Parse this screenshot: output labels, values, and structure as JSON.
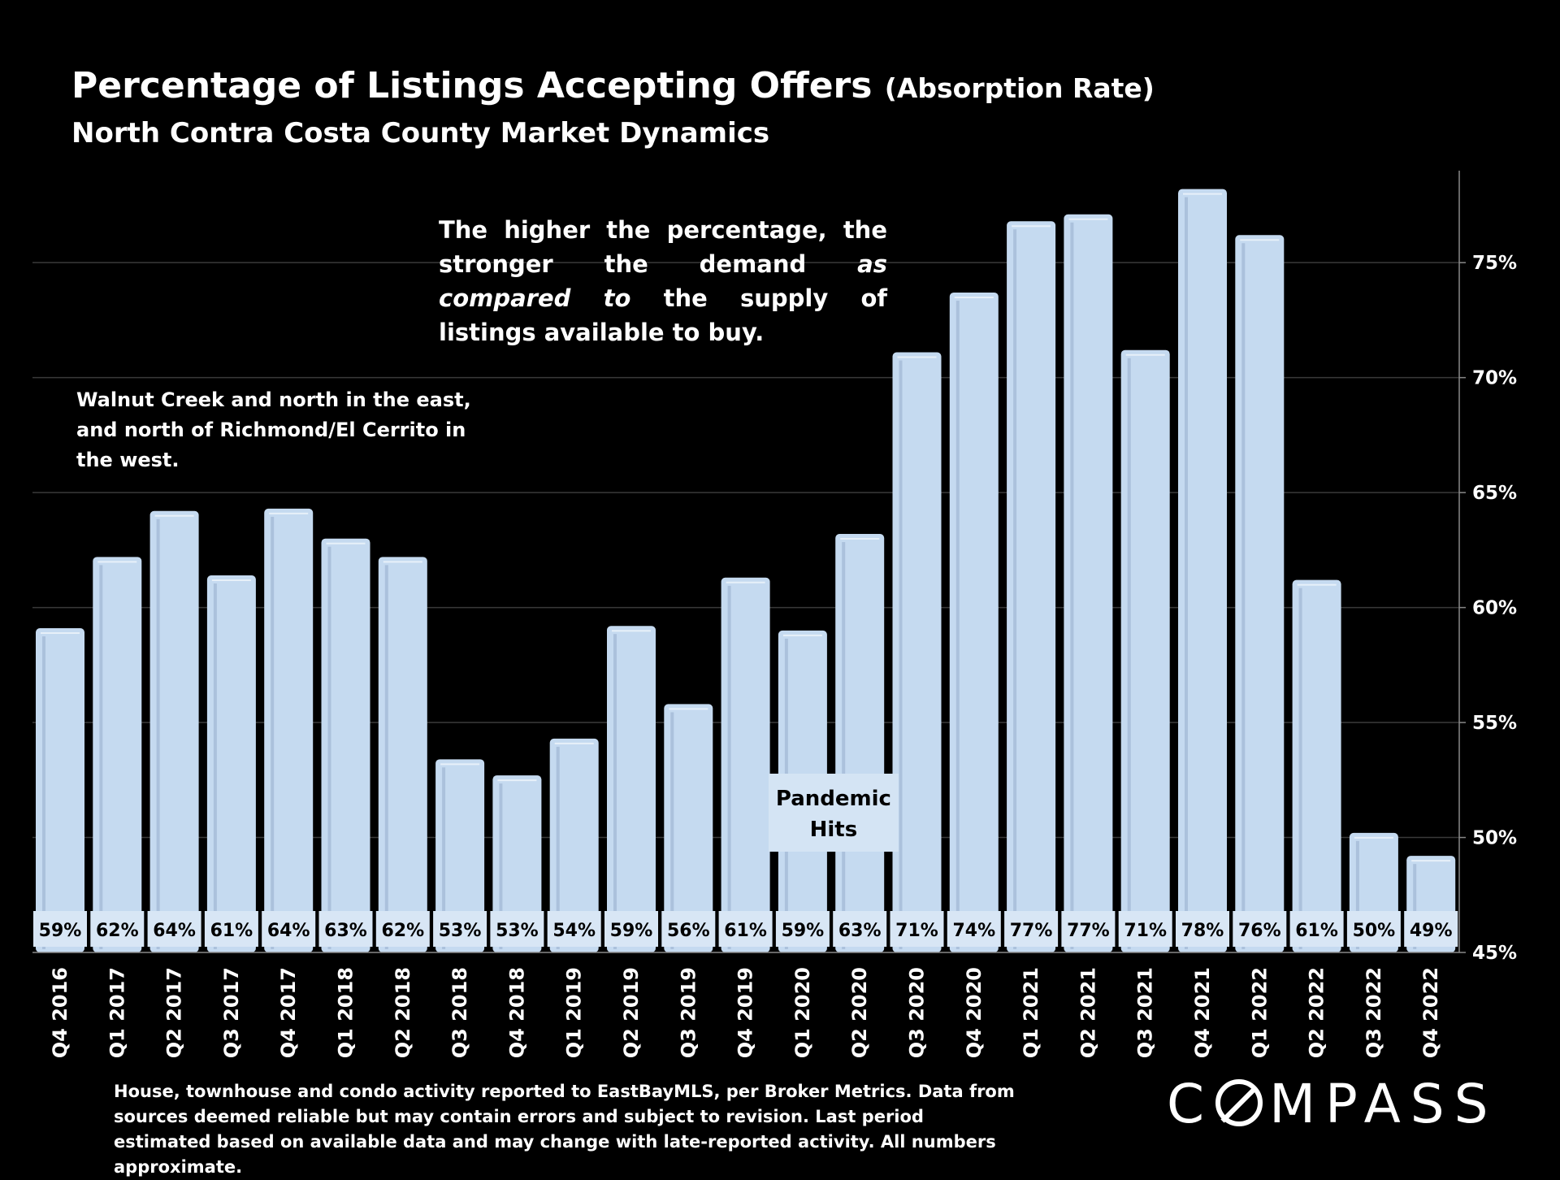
{
  "title": {
    "main": "Percentage of Listings Accepting Offers",
    "suffix": "(Absorption Rate)",
    "subtitle": "North Contra Costa County Market Dynamics"
  },
  "annotations": {
    "note_part1": "The higher the percentage, the stronger the demand ",
    "note_italic": "as compared to",
    "note_part2": " the supply of listings available to buy.",
    "region": "Walnut Creek and north in the east, and north of Richmond/El Cerrito in the west.",
    "pandemic_line1": "Pandemic",
    "pandemic_line2": "Hits"
  },
  "footer": "House, townhouse and condo activity reported to EastBayMLS, per Broker Metrics. Data from sources deemed reliable but may contain errors and subject to revision. Last period estimated based on available data and may change with late-reported activity. All numbers approximate.",
  "logo": {
    "before": "C",
    "after": "MPASS"
  },
  "colors": {
    "background": "#000000",
    "bar": "#c5daf0",
    "bar_shade": "#9fb7d3",
    "grid": "#3a3a3a",
    "text": "#ffffff"
  },
  "chart_data": {
    "type": "bar",
    "title": "Percentage of Listings Accepting Offers (Absorption Rate)",
    "ylabel": "",
    "xlabel": "",
    "ylim": [
      45,
      79
    ],
    "yticks": [
      45,
      50,
      55,
      60,
      65,
      70,
      75
    ],
    "ytick_labels": [
      "45%",
      "50%",
      "55%",
      "60%",
      "65%",
      "70%",
      "75%"
    ],
    "axis_side": "right",
    "grid": true,
    "categories": [
      "Q4 2016",
      "Q1 2017",
      "Q2 2017",
      "Q3 2017",
      "Q4 2017",
      "Q1 2018",
      "Q2 2018",
      "Q3 2018",
      "Q4 2018",
      "Q1 2019",
      "Q2 2019",
      "Q3 2019",
      "Q4 2019",
      "Q1 2020",
      "Q2 2020",
      "Q3 2020",
      "Q4 2020",
      "Q1 2021",
      "Q2 2021",
      "Q3 2021",
      "Q4 2021",
      "Q1 2022",
      "Q2 2022",
      "Q3 2022",
      "Q4 2022"
    ],
    "values": [
      59.1,
      62.2,
      64.2,
      61.4,
      64.3,
      63.0,
      62.2,
      53.4,
      52.7,
      54.3,
      59.2,
      55.8,
      61.3,
      59.0,
      63.2,
      71.1,
      73.7,
      76.8,
      77.1,
      71.2,
      78.2,
      76.2,
      61.2,
      50.2,
      49.2
    ],
    "data_labels": [
      "59%",
      "62%",
      "64%",
      "61%",
      "64%",
      "63%",
      "62%",
      "53%",
      "53%",
      "54%",
      "59%",
      "56%",
      "61%",
      "59%",
      "63%",
      "71%",
      "74%",
      "77%",
      "77%",
      "71%",
      "78%",
      "76%",
      "61%",
      "50%",
      "49%"
    ],
    "annotation": {
      "text": "Pandemic Hits",
      "category": "Q1 2020"
    }
  }
}
